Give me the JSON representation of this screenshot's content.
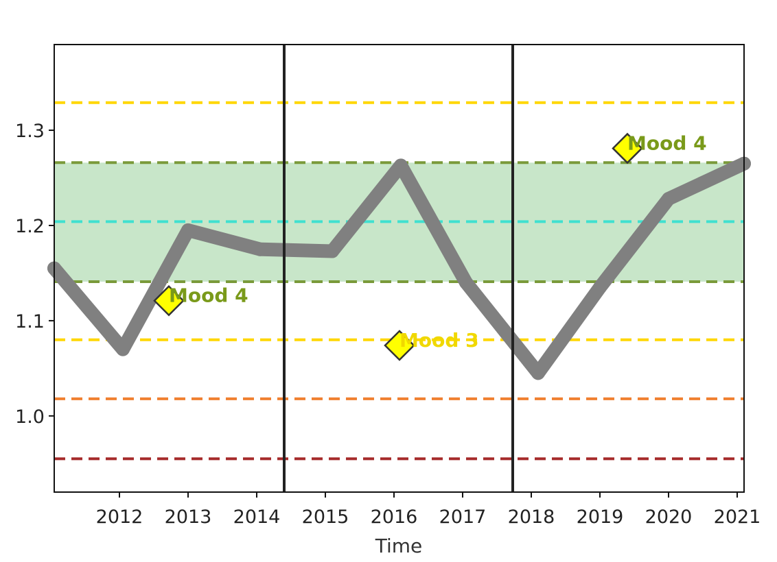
{
  "chart_data": {
    "type": "line",
    "title": "",
    "xlabel": "Time",
    "ylabel": "",
    "xlim": [
      2011.05,
      2021.1
    ],
    "ylim": [
      0.92,
      1.39
    ],
    "x_ticks": [
      2012,
      2013,
      2014,
      2015,
      2016,
      2017,
      2018,
      2019,
      2020,
      2021
    ],
    "x_tick_labels": [
      "2012",
      "2013",
      "2014",
      "2015",
      "2016",
      "2017",
      "2018",
      "2019",
      "2020",
      "2021"
    ],
    "y_ticks": [
      1.0,
      1.1,
      1.2,
      1.3
    ],
    "y_tick_labels": [
      "1.0",
      "1.1",
      "1.2",
      "1.3"
    ],
    "grid": false,
    "series": [
      {
        "color": "#808080",
        "x": [
          2011.05,
          2012.05,
          2013.0,
          2014.05,
          2015.1,
          2016.1,
          2017.05,
          2018.1,
          2019.0,
          2020.0,
          2021.1
        ],
        "y": [
          1.155,
          1.07,
          1.195,
          1.175,
          1.173,
          1.263,
          1.14,
          1.045,
          1.135,
          1.228,
          1.265
        ]
      }
    ],
    "band": {
      "y0": 1.141,
      "y1": 1.266,
      "color": "#c8e6c9"
    },
    "reference_lines": [
      {
        "y": 1.329,
        "color": "#ffd700"
      },
      {
        "y": 1.266,
        "color": "#7a9a3a"
      },
      {
        "y": 1.204,
        "color": "#40e0d0"
      },
      {
        "y": 1.141,
        "color": "#7a9a3a"
      },
      {
        "y": 1.08,
        "color": "#ffd700"
      },
      {
        "y": 1.018,
        "color": "#f08030"
      },
      {
        "y": 0.955,
        "color": "#a52a2a"
      }
    ],
    "vertical_lines": [
      2014.4,
      2017.73
    ],
    "annotations": [
      {
        "x": 2012.72,
        "y": 1.121,
        "label": "Mood 4",
        "color": "#7a9a1a"
      },
      {
        "x": 2016.08,
        "y": 1.074,
        "label": "Mood 3",
        "color": "#f0d800"
      },
      {
        "x": 2019.4,
        "y": 1.281,
        "label": "Mood 4",
        "color": "#7a9a1a"
      }
    ]
  }
}
